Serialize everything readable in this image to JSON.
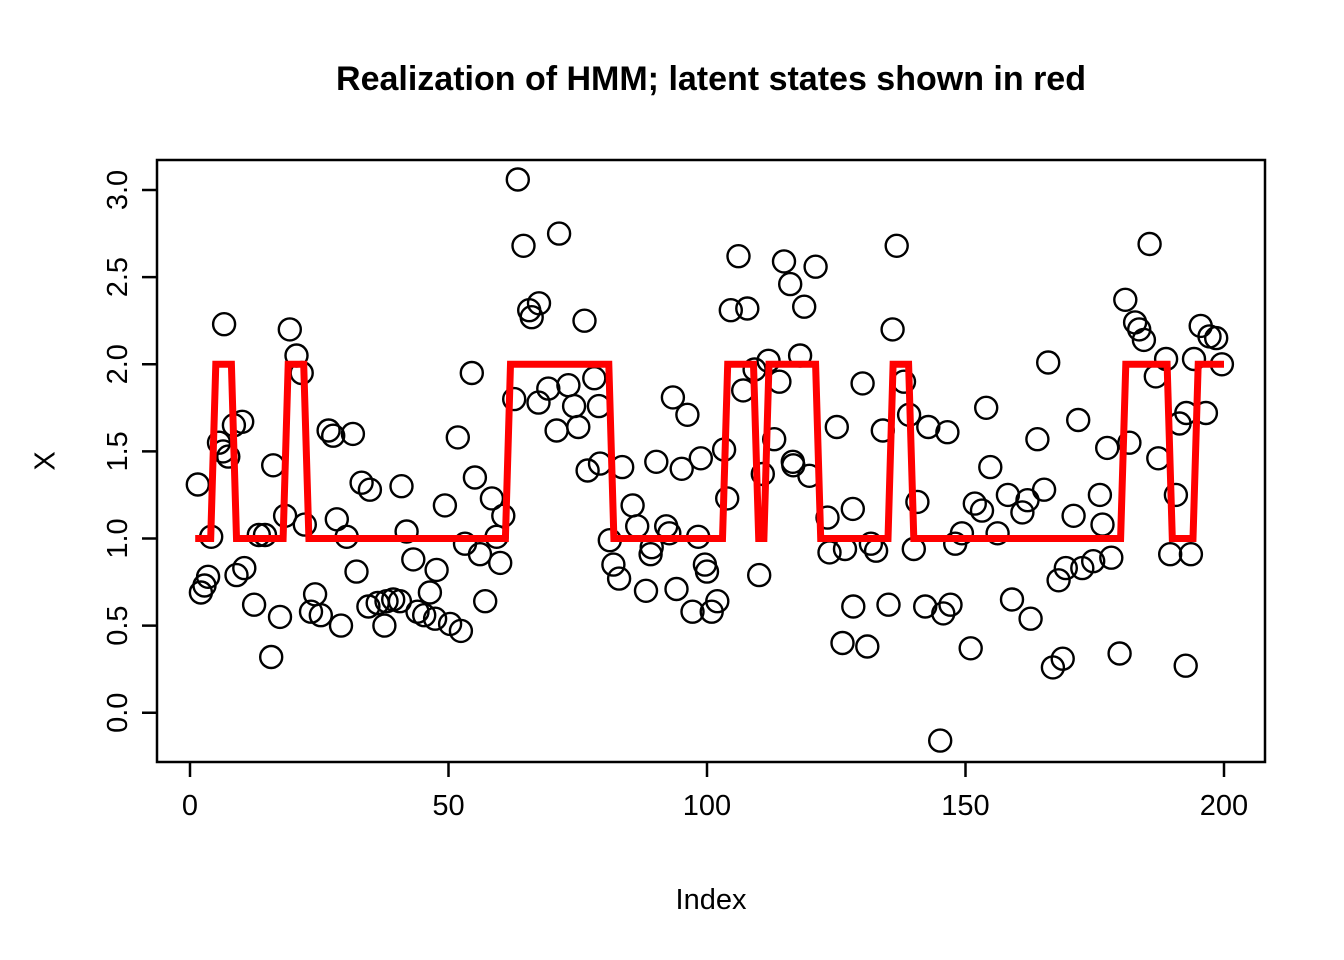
{
  "chart_data": {
    "type": "scatter",
    "title": "Realization of HMM; latent states shown in red",
    "xlabel": "Index",
    "ylabel": "X",
    "xlim": [
      -7,
      208
    ],
    "ylim": [
      -0.28,
      3.17
    ],
    "grid": false,
    "legend": "none",
    "background": "#FFFFFF",
    "axis_color": "#000000",
    "x_ticks": [
      0,
      50,
      100,
      150,
      200
    ],
    "x_tick_labels": [
      "0",
      "50",
      "100",
      "150",
      "200"
    ],
    "y_ticks": [
      0.0,
      0.5,
      1.0,
      1.5,
      2.0,
      2.5,
      3.0
    ],
    "y_tick_labels": [
      "0.0",
      "0.5",
      "1.0",
      "1.5",
      "2.0",
      "2.5",
      "3.0"
    ],
    "series": [
      {
        "name": "observations",
        "type": "scatter",
        "marker": "open-circle",
        "color": "#000000",
        "x": [
          1.5,
          2.1,
          2.8,
          3.5,
          4.1,
          5.6,
          6.4,
          6.6,
          7.4,
          8.5,
          9,
          10.1,
          10.5,
          12.4,
          13.3,
          14.5,
          15.7,
          16.1,
          17.4,
          18.4,
          19.3,
          20.6,
          21.6,
          22.2,
          23.4,
          24.2,
          25.3,
          26.8,
          27.7,
          28.4,
          29.2,
          30.3,
          31.5,
          32.2,
          33.2,
          34.5,
          34.8,
          36.3,
          37.6,
          38,
          39.3,
          40.6,
          40.9,
          41.9,
          43.2,
          44,
          45.3,
          46.4,
          47.4,
          47.7,
          49.3,
          50.3,
          51.8,
          52.4,
          53.2,
          54.5,
          55.1,
          56.1,
          57.1,
          58.4,
          59.3,
          60,
          60.6,
          62.7,
          63.4,
          64.5,
          65.6,
          66.1,
          67.4,
          67.5,
          69.3,
          70.9,
          71.4,
          73.2,
          74.3,
          75.1,
          76.3,
          76.9,
          78.2,
          79.1,
          79.3,
          81.2,
          81.9,
          83,
          83.6,
          85.6,
          86.5,
          88.2,
          89.1,
          89.3,
          90.2,
          92.1,
          92.7,
          93.4,
          94.1,
          95.1,
          96.2,
          97.2,
          98.3,
          98.8,
          99.6,
          100,
          100.9,
          102,
          103.3,
          103.9,
          104.6,
          106.1,
          107,
          107.8,
          109.2,
          110.1,
          110.8,
          111.9,
          113,
          114,
          114.9,
          116.1,
          116.6,
          116.7,
          118,
          118.8,
          119.8,
          121,
          123.3,
          123.7,
          125.1,
          126.2,
          126.7,
          128.2,
          128.3,
          130.1,
          131,
          131.7,
          132.7,
          134,
          135.1,
          135.9,
          136.7,
          138.1,
          139.1,
          140,
          140.7,
          142.2,
          142.8,
          145.1,
          145.7,
          146.5,
          147.1,
          148,
          149.3,
          151,
          151.8,
          153.2,
          154,
          154.8,
          156.2,
          158.2,
          159,
          161,
          162,
          162.6,
          163.9,
          165.2,
          166,
          166.9,
          168,
          168.8,
          169.4,
          170.9,
          171.8,
          172.6,
          174.7,
          176,
          176.5,
          177.4,
          178.2,
          179.8,
          180.9,
          181.7,
          182.8,
          183.6,
          184.5,
          185.6,
          186.8,
          187.3,
          188.8,
          189.6,
          190.7,
          191.4,
          192.6,
          192.7,
          193.6,
          194.2,
          195.5,
          196.5,
          197.2,
          198.5,
          199.6
        ],
        "y": [
          1.31,
          0.69,
          0.73,
          0.78,
          1.01,
          1.55,
          1.5,
          2.23,
          1.47,
          1.65,
          0.79,
          1.67,
          0.83,
          0.62,
          1.02,
          1.02,
          0.32,
          1.42,
          0.55,
          1.13,
          2.2,
          2.05,
          1.95,
          1.08,
          0.58,
          0.68,
          0.56,
          1.62,
          1.59,
          1.11,
          0.5,
          1.01,
          1.6,
          0.81,
          1.32,
          0.61,
          1.28,
          0.63,
          0.5,
          0.64,
          0.65,
          0.64,
          1.3,
          1.04,
          0.88,
          0.58,
          0.56,
          0.69,
          0.54,
          0.82,
          1.19,
          0.51,
          1.58,
          0.47,
          0.97,
          1.95,
          1.35,
          0.91,
          0.64,
          1.23,
          1.01,
          0.86,
          1.13,
          1.8,
          3.06,
          2.68,
          2.31,
          2.27,
          1.78,
          2.35,
          1.86,
          1.62,
          2.75,
          1.88,
          1.76,
          1.64,
          2.25,
          1.39,
          1.92,
          1.76,
          1.43,
          0.99,
          0.85,
          0.77,
          1.41,
          1.19,
          1.07,
          0.7,
          0.91,
          0.95,
          1.44,
          1.07,
          1.03,
          1.81,
          0.71,
          1.4,
          1.71,
          0.58,
          1.01,
          1.46,
          0.85,
          0.81,
          0.58,
          0.64,
          1.51,
          1.23,
          2.31,
          2.62,
          1.85,
          2.32,
          1.97,
          0.79,
          1.37,
          2.02,
          1.57,
          1.9,
          2.59,
          2.46,
          1.44,
          1.42,
          2.05,
          2.33,
          1.36,
          2.56,
          1.12,
          0.92,
          1.64,
          0.4,
          0.94,
          1.17,
          0.61,
          1.89,
          0.38,
          0.97,
          0.93,
          1.62,
          0.62,
          2.2,
          2.68,
          1.9,
          1.71,
          0.94,
          1.21,
          0.61,
          1.64,
          -0.16,
          0.57,
          1.61,
          0.62,
          0.97,
          1.03,
          0.37,
          1.2,
          1.16,
          1.75,
          1.41,
          1.03,
          1.25,
          0.65,
          1.15,
          1.22,
          0.54,
          1.57,
          1.28,
          2.01,
          0.26,
          0.76,
          0.31,
          0.83,
          1.13,
          1.68,
          0.83,
          0.87,
          1.25,
          1.08,
          1.52,
          0.89,
          0.34,
          2.37,
          1.55,
          2.24,
          2.2,
          2.14,
          2.69,
          1.93,
          1.46,
          2.03,
          0.91,
          1.25,
          1.66,
          0.27,
          1.72,
          0.91,
          2.03,
          2.22,
          1.72,
          2.16,
          2.15,
          2.0
        ]
      },
      {
        "name": "latent states",
        "type": "step-line",
        "color": "#FF0000",
        "line_width": 7,
        "segments": [
          {
            "from": 1,
            "to": 4,
            "state": 1
          },
          {
            "from": 5,
            "to": 8,
            "state": 2
          },
          {
            "from": 9,
            "to": 18,
            "state": 1
          },
          {
            "from": 19,
            "to": 22,
            "state": 2
          },
          {
            "from": 23,
            "to": 61,
            "state": 1
          },
          {
            "from": 62,
            "to": 81,
            "state": 2
          },
          {
            "from": 82,
            "to": 103,
            "state": 1
          },
          {
            "from": 104,
            "to": 109,
            "state": 2
          },
          {
            "from": 110,
            "to": 111,
            "state": 1
          },
          {
            "from": 112,
            "to": 121,
            "state": 2
          },
          {
            "from": 122,
            "to": 135,
            "state": 1
          },
          {
            "from": 136,
            "to": 139,
            "state": 2
          },
          {
            "from": 140,
            "to": 180,
            "state": 1
          },
          {
            "from": 181,
            "to": 189,
            "state": 2
          },
          {
            "from": 190,
            "to": 194,
            "state": 1
          },
          {
            "from": 195,
            "to": 200,
            "state": 2
          }
        ]
      }
    ]
  }
}
